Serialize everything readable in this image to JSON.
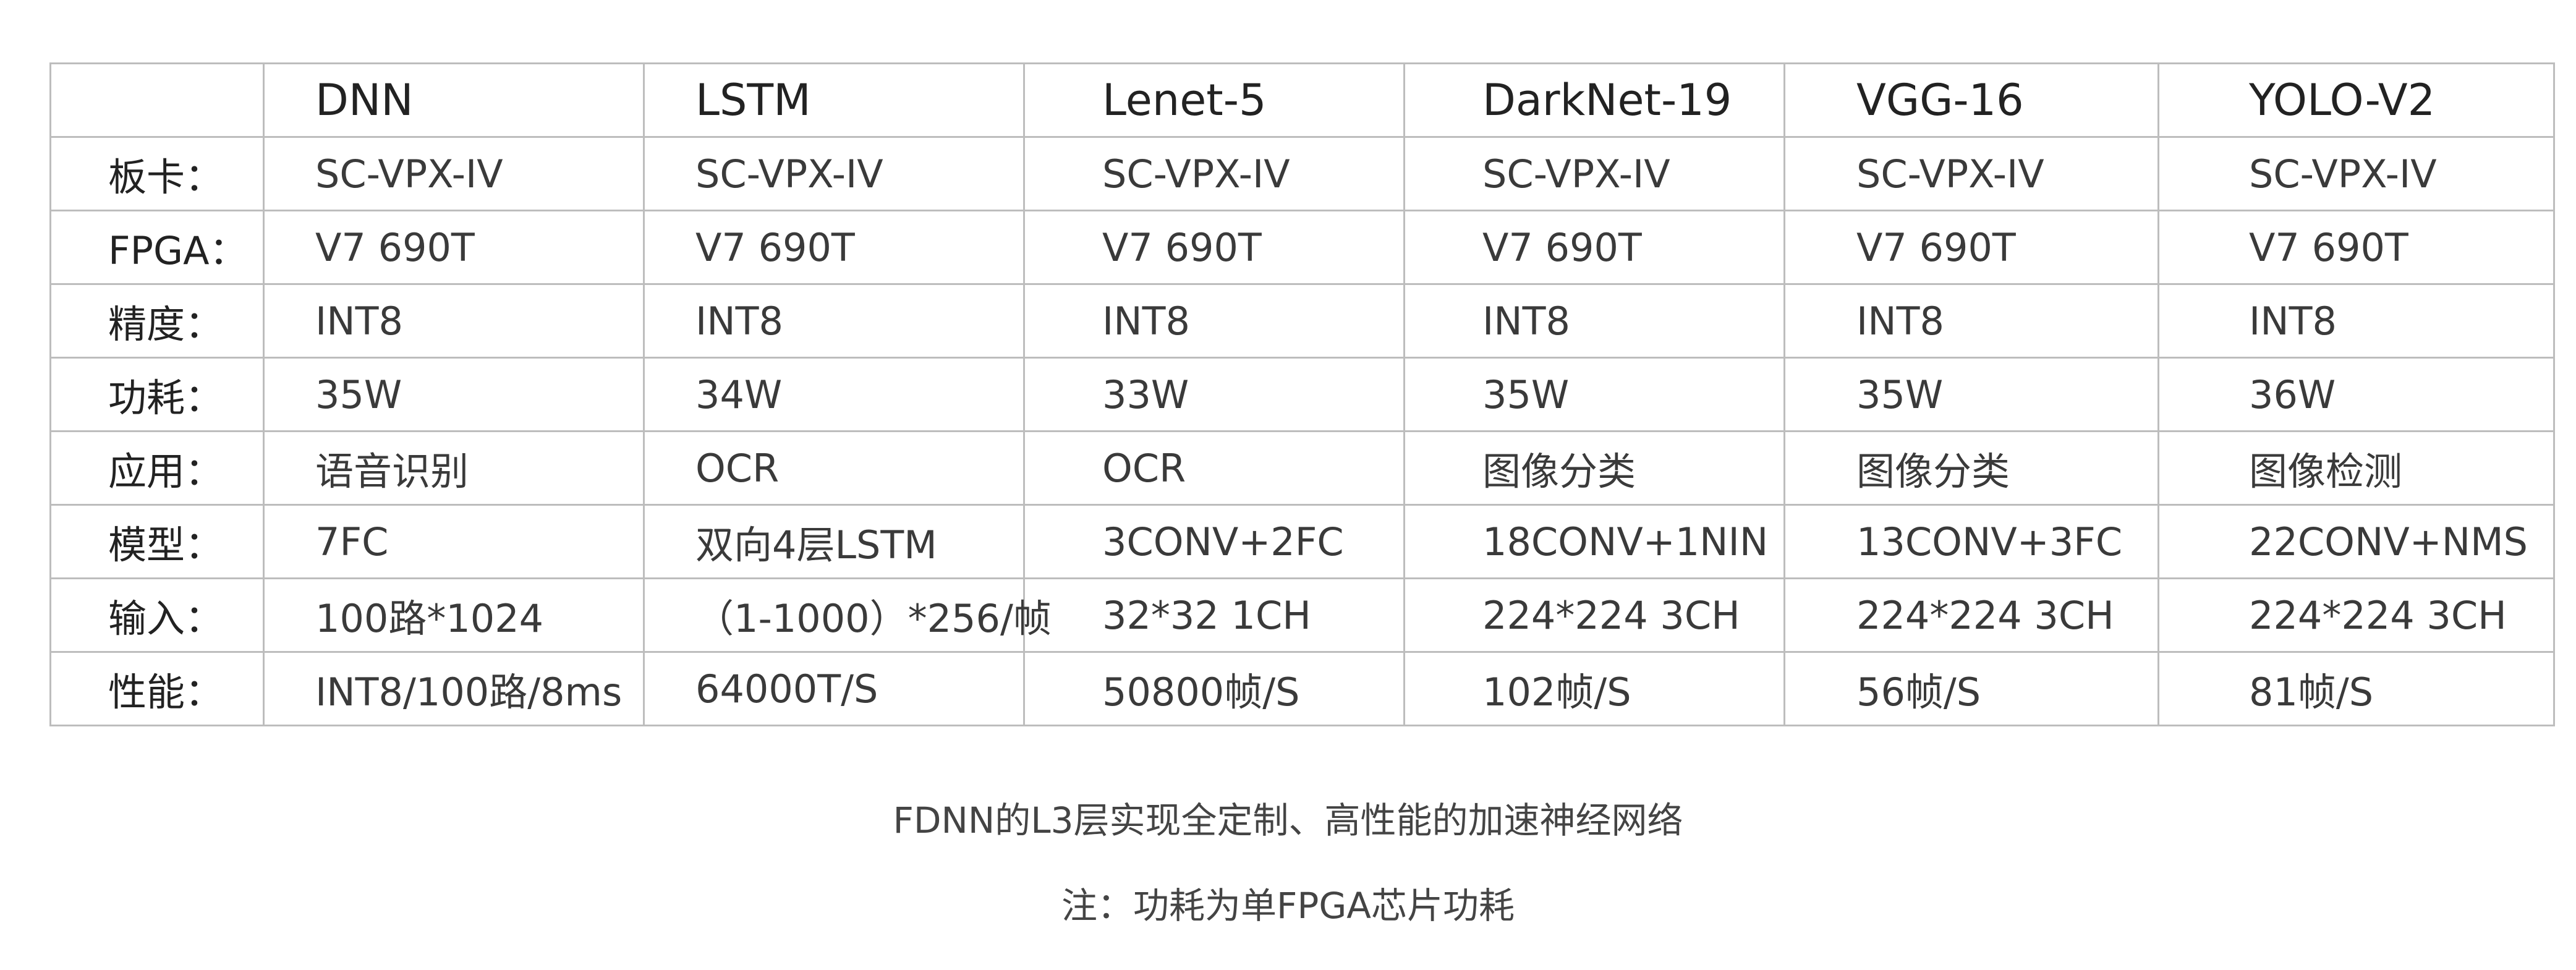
{
  "table": {
    "columns": [
      "",
      "DNN",
      "LSTM",
      "Lenet-5",
      "DarkNet-19",
      "VGG-16",
      "YOLO-V2"
    ],
    "rows": [
      {
        "label": "板卡：",
        "cells": [
          "SC-VPX-IV",
          "SC-VPX-IV",
          "SC-VPX-IV",
          "SC-VPX-IV",
          "SC-VPX-IV",
          "SC-VPX-IV"
        ]
      },
      {
        "label": "FPGA：",
        "cells": [
          "V7 690T",
          "V7 690T",
          "V7 690T",
          "V7 690T",
          "V7 690T",
          "V7 690T"
        ]
      },
      {
        "label": "精度：",
        "cells": [
          "INT8",
          "INT8",
          "INT8",
          "INT8",
          "INT8",
          "INT8"
        ]
      },
      {
        "label": "功耗：",
        "cells": [
          "35W",
          "34W",
          "33W",
          "35W",
          "35W",
          "36W"
        ]
      },
      {
        "label": "应用：",
        "cells": [
          "语音识别",
          "OCR",
          "OCR",
          "图像分类",
          "图像分类",
          "图像检测"
        ]
      },
      {
        "label": "模型：",
        "cells": [
          "7FC",
          "双向4层LSTM",
          "3CONV+2FC",
          "18CONV+1NIN",
          "13CONV+3FC",
          "22CONV+NMS"
        ]
      },
      {
        "label": "输入：",
        "cells": [
          "100路*1024",
          "（1-1000）*256/帧",
          "32*32 1CH",
          "224*224 3CH",
          "224*224 3CH",
          "224*224 3CH"
        ]
      },
      {
        "label": "性能：",
        "cells": [
          "INT8/100路/8ms",
          "64000T/S",
          "50800帧/S",
          "102帧/S",
          "56帧/S",
          "81帧/S"
        ]
      }
    ]
  },
  "caption": "FDNN的L3层实现全定制、高性能的加速神经网络",
  "note": "注：功耗为单FPGA芯片功耗"
}
